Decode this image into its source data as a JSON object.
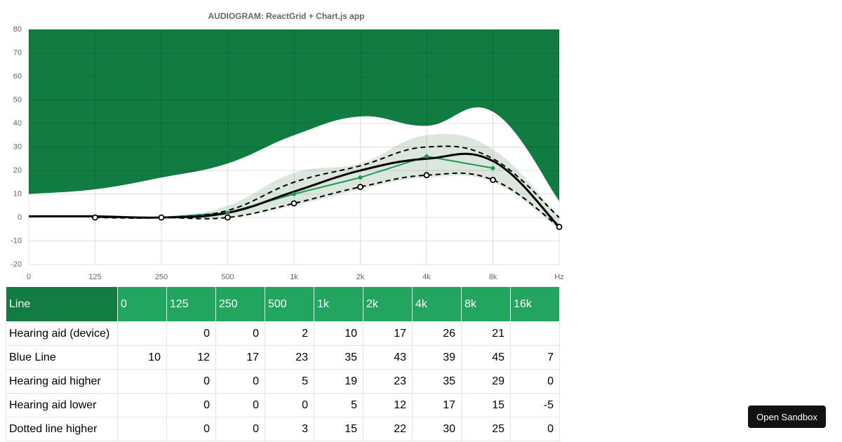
{
  "chart_data": {
    "type": "line",
    "title": "AUDIOGRAM: ReactGrid + Chart.js app",
    "categories": [
      "0",
      "125",
      "250",
      "500",
      "1k",
      "2k",
      "4k",
      "8k",
      "Hz"
    ],
    "ylim": [
      -20,
      80
    ],
    "yticks": [
      -20,
      -10,
      0,
      10,
      20,
      30,
      40,
      50,
      60,
      70,
      80
    ],
    "grid": true,
    "series": [
      {
        "kind": "area-top",
        "color": "#117c41",
        "values": [
          10,
          12,
          17,
          23,
          35,
          43,
          39,
          45,
          7
        ]
      },
      {
        "kind": "band-upper",
        "color": "#dbe6dd",
        "values": [
          null,
          0,
          0,
          5,
          19,
          23,
          35,
          29,
          0
        ]
      },
      {
        "kind": "band-lower",
        "color": "#dbe6dd",
        "values": [
          null,
          0,
          0,
          0,
          5,
          12,
          17,
          15,
          -5
        ]
      },
      {
        "kind": "line",
        "color": "#1e9a58",
        "straight": true,
        "points": "dot",
        "values": [
          null,
          0,
          0,
          2,
          10,
          17,
          26,
          21,
          null
        ]
      },
      {
        "kind": "line",
        "color": "#000000",
        "dash": true,
        "values": [
          null,
          0,
          0,
          3,
          15,
          22,
          30,
          25,
          0
        ]
      },
      {
        "kind": "line",
        "color": "#000000",
        "dash": true,
        "points": "ring",
        "values": [
          null,
          0,
          0,
          0,
          6,
          13,
          18,
          16,
          -4
        ]
      },
      {
        "kind": "line",
        "color": "#000000",
        "width": 3,
        "values": [
          0.5,
          0.5,
          0,
          2,
          11,
          20,
          25,
          24,
          -4
        ]
      }
    ]
  },
  "table": {
    "header": [
      "Line",
      "0",
      "125",
      "250",
      "500",
      "1k",
      "2k",
      "4k",
      "8k",
      "16k"
    ],
    "rows": [
      {
        "label": "Hearing aid (device)",
        "cells": [
          null,
          0,
          0,
          2,
          10,
          17,
          26,
          21,
          null
        ]
      },
      {
        "label": "Blue Line",
        "cells": [
          10,
          12,
          17,
          23,
          35,
          43,
          39,
          45,
          7
        ]
      },
      {
        "label": "Hearing aid higher",
        "cells": [
          null,
          0,
          0,
          5,
          19,
          23,
          35,
          29,
          0
        ]
      },
      {
        "label": "Hearing aid lower",
        "cells": [
          null,
          0,
          0,
          0,
          5,
          12,
          17,
          15,
          -5
        ]
      },
      {
        "label": "Dotted line higher",
        "cells": [
          null,
          0,
          0,
          3,
          15,
          22,
          30,
          25,
          0
        ]
      }
    ]
  },
  "button": {
    "label": "Open Sandbox"
  }
}
